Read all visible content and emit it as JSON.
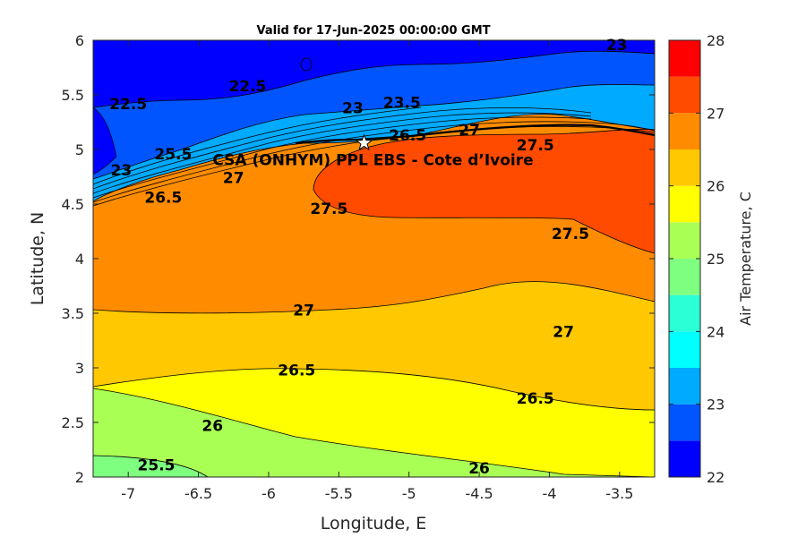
{
  "chart_data": {
    "type": "heatmap",
    "subtype": "filled-contour",
    "title": "Valid for 17-Jun-2025 00:00:00 GMT",
    "xlabel": "Longitude, E",
    "ylabel": "Latitude, N",
    "colorbar_label": "Air Temperature, C",
    "xlim": [
      -7.25,
      -3.25
    ],
    "ylim": [
      2,
      6
    ],
    "xticks": [
      -7,
      -6.5,
      -6,
      -5.5,
      -5,
      -4.5,
      -4,
      -3.5
    ],
    "xtick_labels": [
      "-7",
      "-6.5",
      "-6",
      "-5.5",
      "-5",
      "-4.5",
      "-4",
      "-3.5"
    ],
    "yticks": [
      2,
      2.5,
      3,
      3.5,
      4,
      4.5,
      5,
      5.5,
      6
    ],
    "ytick_labels": [
      "2",
      "2.5",
      "3",
      "3.5",
      "4",
      "4.5",
      "5",
      "5.5",
      "6"
    ],
    "colorbar": {
      "range": [
        22,
        28
      ],
      "ticks": [
        22,
        23,
        24,
        25,
        26,
        27,
        28
      ],
      "tick_labels": [
        "22",
        "23",
        "24",
        "25",
        "26",
        "27",
        "28"
      ],
      "levels": [
        22,
        22.5,
        23,
        23.5,
        24,
        24.5,
        25,
        25.5,
        26,
        26.5,
        27,
        27.5,
        28
      ],
      "colors": [
        "#0000ff",
        "#0055ff",
        "#00aaff",
        "#00ffff",
        "#2affd5",
        "#7fff7f",
        "#aaff55",
        "#ffff00",
        "#ffc800",
        "#ff8c00",
        "#ff4b00",
        "#ff0000"
      ]
    },
    "contour_labels": [
      {
        "text": "22.5",
        "x": -7.0,
        "y": 5.42
      },
      {
        "text": "22.5",
        "x": -6.15,
        "y": 5.58
      },
      {
        "text": "23",
        "x": -3.52,
        "y": 5.96
      },
      {
        "text": "23",
        "x": -5.4,
        "y": 5.38
      },
      {
        "text": "23",
        "x": -7.05,
        "y": 4.81
      },
      {
        "text": "23.5",
        "x": -5.05,
        "y": 5.43
      },
      {
        "text": "27",
        "x": -4.57,
        "y": 5.18
      },
      {
        "text": "27",
        "x": -6.25,
        "y": 4.74
      },
      {
        "text": "27.5",
        "x": -4.1,
        "y": 5.04
      },
      {
        "text": "27.5",
        "x": -5.57,
        "y": 4.46
      },
      {
        "text": "27.5",
        "x": -3.85,
        "y": 4.23
      },
      {
        "text": "27",
        "x": -5.75,
        "y": 3.53
      },
      {
        "text": "27",
        "x": -3.9,
        "y": 3.33
      },
      {
        "text": "26.5",
        "x": -5.8,
        "y": 2.98
      },
      {
        "text": "26.5",
        "x": -4.1,
        "y": 2.72
      },
      {
        "text": "26",
        "x": -6.4,
        "y": 2.47
      },
      {
        "text": "26",
        "x": -4.5,
        "y": 2.08
      },
      {
        "text": "25.5",
        "x": -6.8,
        "y": 2.11
      },
      {
        "text": "26.5",
        "x": -5.01,
        "y": 5.13
      },
      {
        "text": "26.5",
        "x": -6.75,
        "y": 4.56
      },
      {
        "text": "25.5",
        "x": -6.68,
        "y": 4.96
      }
    ],
    "site": {
      "name": "CSA (ONHYM) PPL EBS  - Cote d’Ivoire",
      "lon": -5.32,
      "lat": 5.06
    }
  },
  "icons": {
    "site_marker": "star-icon"
  }
}
